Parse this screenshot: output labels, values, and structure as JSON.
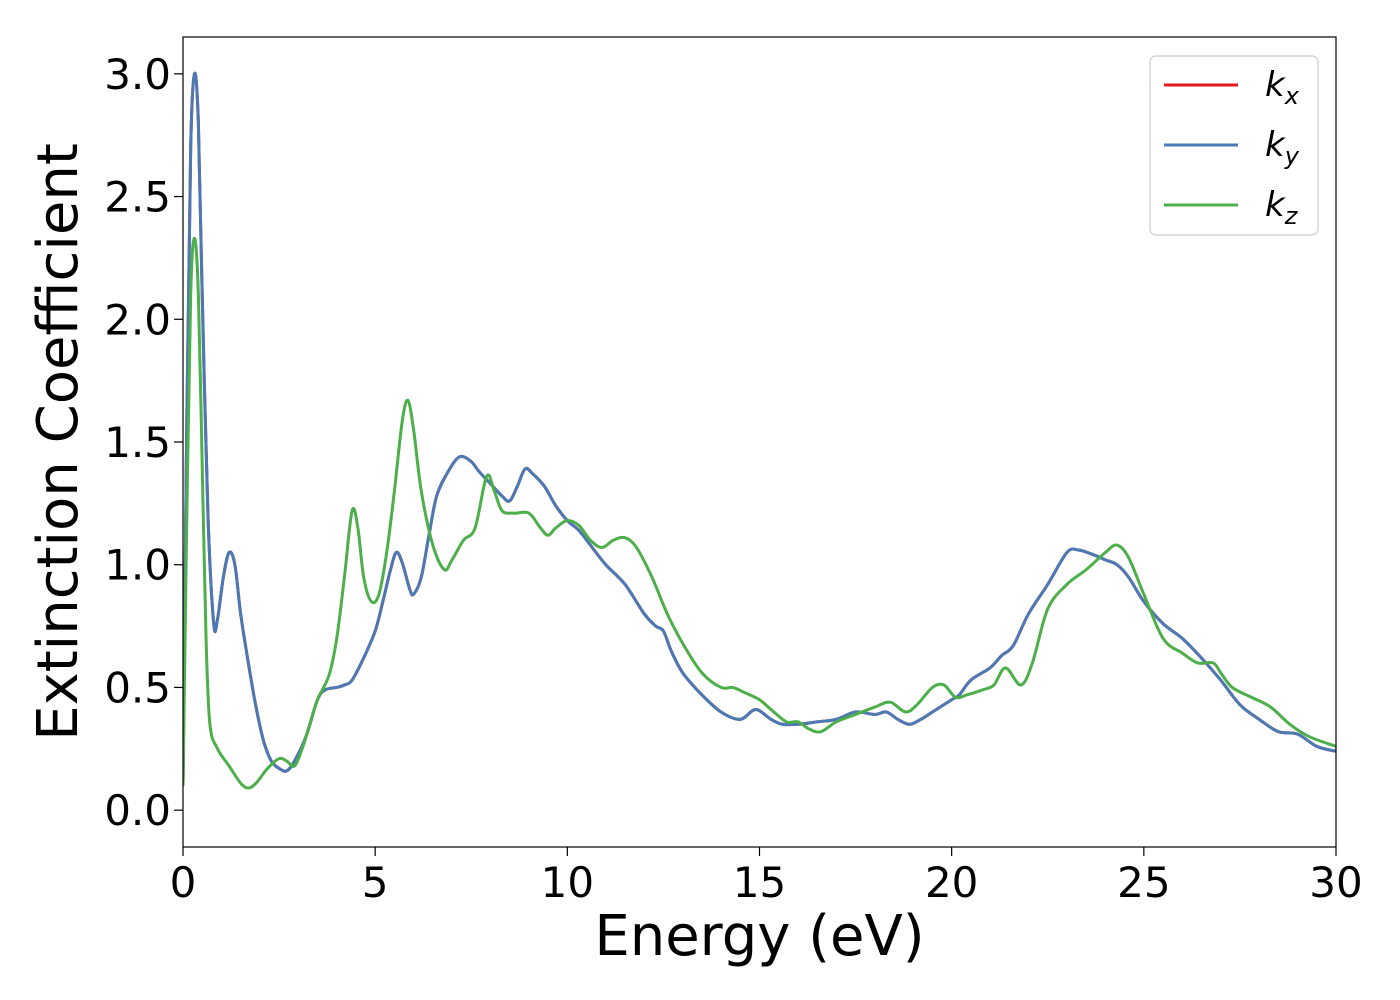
{
  "chart_data": {
    "type": "line",
    "title": "",
    "xlabel": "Energy (eV)",
    "ylabel": "Extinction Coefficient",
    "xlim": [
      0,
      30
    ],
    "ylim": [
      -0.15,
      3.15
    ],
    "xticks": [
      0,
      5,
      10,
      15,
      20,
      25,
      30
    ],
    "xtick_labels": [
      "0",
      "5",
      "10",
      "15",
      "20",
      "25",
      "30"
    ],
    "yticks": [
      0.0,
      0.5,
      1.0,
      1.5,
      2.0,
      2.5,
      3.0
    ],
    "ytick_labels": [
      "0.0",
      "0.5",
      "1.0",
      "1.5",
      "2.0",
      "2.5",
      "3.0"
    ],
    "grid": false,
    "legend_position": "top-right",
    "series": [
      {
        "name": "k",
        "name_sub": "x",
        "color": "#e41a1c",
        "points": [
          [
            0,
            0.1
          ],
          [
            0.1,
            1.6
          ],
          [
            0.2,
            2.7
          ],
          [
            0.3,
            3.0
          ],
          [
            0.4,
            2.8
          ],
          [
            0.5,
            2.1
          ],
          [
            0.65,
            1.2
          ],
          [
            0.8,
            0.76
          ],
          [
            0.9,
            0.78
          ],
          [
            1.05,
            0.95
          ],
          [
            1.2,
            1.05
          ],
          [
            1.35,
            1.0
          ],
          [
            1.5,
            0.8
          ],
          [
            1.7,
            0.6
          ],
          [
            1.9,
            0.42
          ],
          [
            2.1,
            0.28
          ],
          [
            2.3,
            0.2
          ],
          [
            2.5,
            0.17
          ],
          [
            2.7,
            0.16
          ],
          [
            2.9,
            0.2
          ],
          [
            3.2,
            0.3
          ],
          [
            3.5,
            0.45
          ],
          [
            3.7,
            0.49
          ],
          [
            4.0,
            0.5
          ],
          [
            4.2,
            0.51
          ],
          [
            4.4,
            0.53
          ],
          [
            4.7,
            0.62
          ],
          [
            5.0,
            0.73
          ],
          [
            5.2,
            0.85
          ],
          [
            5.4,
            0.98
          ],
          [
            5.55,
            1.05
          ],
          [
            5.7,
            1.01
          ],
          [
            5.9,
            0.9
          ],
          [
            6.0,
            0.88
          ],
          [
            6.2,
            0.95
          ],
          [
            6.4,
            1.12
          ],
          [
            6.6,
            1.28
          ],
          [
            6.9,
            1.38
          ],
          [
            7.2,
            1.44
          ],
          [
            7.5,
            1.42
          ],
          [
            7.7,
            1.38
          ],
          [
            8.0,
            1.33
          ],
          [
            8.3,
            1.28
          ],
          [
            8.5,
            1.26
          ],
          [
            8.7,
            1.32
          ],
          [
            8.9,
            1.39
          ],
          [
            9.1,
            1.37
          ],
          [
            9.4,
            1.32
          ],
          [
            9.7,
            1.24
          ],
          [
            10.0,
            1.18
          ],
          [
            10.3,
            1.14
          ],
          [
            10.6,
            1.08
          ],
          [
            11.0,
            1.0
          ],
          [
            11.5,
            0.92
          ],
          [
            12.0,
            0.8
          ],
          [
            12.3,
            0.75
          ],
          [
            12.5,
            0.73
          ],
          [
            12.7,
            0.65
          ],
          [
            13.0,
            0.56
          ],
          [
            13.5,
            0.47
          ],
          [
            14.0,
            0.4
          ],
          [
            14.5,
            0.37
          ],
          [
            14.9,
            0.41
          ],
          [
            15.3,
            0.37
          ],
          [
            15.6,
            0.35
          ],
          [
            16.0,
            0.35
          ],
          [
            16.5,
            0.36
          ],
          [
            17.0,
            0.37
          ],
          [
            17.5,
            0.4
          ],
          [
            18.0,
            0.39
          ],
          [
            18.3,
            0.4
          ],
          [
            18.6,
            0.37
          ],
          [
            18.9,
            0.35
          ],
          [
            19.2,
            0.37
          ],
          [
            19.5,
            0.4
          ],
          [
            20.0,
            0.45
          ],
          [
            20.2,
            0.47
          ],
          [
            20.5,
            0.53
          ],
          [
            21.0,
            0.58
          ],
          [
            21.3,
            0.63
          ],
          [
            21.6,
            0.67
          ],
          [
            22.0,
            0.8
          ],
          [
            22.5,
            0.92
          ],
          [
            23.0,
            1.05
          ],
          [
            23.3,
            1.06
          ],
          [
            23.7,
            1.04
          ],
          [
            24.0,
            1.02
          ],
          [
            24.3,
            1.0
          ],
          [
            24.6,
            0.95
          ],
          [
            25.0,
            0.85
          ],
          [
            25.5,
            0.76
          ],
          [
            26.0,
            0.7
          ],
          [
            26.5,
            0.62
          ],
          [
            27.0,
            0.53
          ],
          [
            27.5,
            0.43
          ],
          [
            28.0,
            0.37
          ],
          [
            28.5,
            0.32
          ],
          [
            29.0,
            0.31
          ],
          [
            29.5,
            0.26
          ],
          [
            30.0,
            0.24
          ]
        ]
      },
      {
        "name": "k",
        "name_sub": "y",
        "color": "#4a7ab5",
        "points": [
          [
            0,
            0.1
          ],
          [
            0.1,
            1.6
          ],
          [
            0.2,
            2.7
          ],
          [
            0.3,
            3.0
          ],
          [
            0.4,
            2.8
          ],
          [
            0.5,
            2.1
          ],
          [
            0.65,
            1.2
          ],
          [
            0.8,
            0.76
          ],
          [
            0.9,
            0.78
          ],
          [
            1.05,
            0.95
          ],
          [
            1.2,
            1.05
          ],
          [
            1.35,
            1.0
          ],
          [
            1.5,
            0.8
          ],
          [
            1.7,
            0.6
          ],
          [
            1.9,
            0.42
          ],
          [
            2.1,
            0.28
          ],
          [
            2.3,
            0.2
          ],
          [
            2.5,
            0.17
          ],
          [
            2.7,
            0.16
          ],
          [
            2.9,
            0.2
          ],
          [
            3.2,
            0.3
          ],
          [
            3.5,
            0.45
          ],
          [
            3.7,
            0.49
          ],
          [
            4.0,
            0.5
          ],
          [
            4.2,
            0.51
          ],
          [
            4.4,
            0.53
          ],
          [
            4.7,
            0.62
          ],
          [
            5.0,
            0.73
          ],
          [
            5.2,
            0.85
          ],
          [
            5.4,
            0.98
          ],
          [
            5.55,
            1.05
          ],
          [
            5.7,
            1.01
          ],
          [
            5.9,
            0.9
          ],
          [
            6.0,
            0.88
          ],
          [
            6.2,
            0.95
          ],
          [
            6.4,
            1.12
          ],
          [
            6.6,
            1.28
          ],
          [
            6.9,
            1.38
          ],
          [
            7.2,
            1.44
          ],
          [
            7.5,
            1.42
          ],
          [
            7.7,
            1.38
          ],
          [
            8.0,
            1.33
          ],
          [
            8.3,
            1.28
          ],
          [
            8.5,
            1.26
          ],
          [
            8.7,
            1.32
          ],
          [
            8.9,
            1.39
          ],
          [
            9.1,
            1.37
          ],
          [
            9.4,
            1.32
          ],
          [
            9.7,
            1.24
          ],
          [
            10.0,
            1.18
          ],
          [
            10.3,
            1.14
          ],
          [
            10.6,
            1.08
          ],
          [
            11.0,
            1.0
          ],
          [
            11.5,
            0.92
          ],
          [
            12.0,
            0.8
          ],
          [
            12.3,
            0.75
          ],
          [
            12.5,
            0.73
          ],
          [
            12.7,
            0.65
          ],
          [
            13.0,
            0.56
          ],
          [
            13.5,
            0.47
          ],
          [
            14.0,
            0.4
          ],
          [
            14.5,
            0.37
          ],
          [
            14.9,
            0.41
          ],
          [
            15.3,
            0.37
          ],
          [
            15.6,
            0.35
          ],
          [
            16.0,
            0.35
          ],
          [
            16.5,
            0.36
          ],
          [
            17.0,
            0.37
          ],
          [
            17.5,
            0.4
          ],
          [
            18.0,
            0.39
          ],
          [
            18.3,
            0.4
          ],
          [
            18.6,
            0.37
          ],
          [
            18.9,
            0.35
          ],
          [
            19.2,
            0.37
          ],
          [
            19.5,
            0.4
          ],
          [
            20.0,
            0.45
          ],
          [
            20.2,
            0.47
          ],
          [
            20.5,
            0.53
          ],
          [
            21.0,
            0.58
          ],
          [
            21.3,
            0.63
          ],
          [
            21.6,
            0.67
          ],
          [
            22.0,
            0.8
          ],
          [
            22.5,
            0.92
          ],
          [
            23.0,
            1.05
          ],
          [
            23.3,
            1.06
          ],
          [
            23.7,
            1.04
          ],
          [
            24.0,
            1.02
          ],
          [
            24.3,
            1.0
          ],
          [
            24.6,
            0.95
          ],
          [
            25.0,
            0.85
          ],
          [
            25.5,
            0.76
          ],
          [
            26.0,
            0.7
          ],
          [
            26.5,
            0.62
          ],
          [
            27.0,
            0.53
          ],
          [
            27.5,
            0.43
          ],
          [
            28.0,
            0.37
          ],
          [
            28.5,
            0.32
          ],
          [
            29.0,
            0.31
          ],
          [
            29.5,
            0.26
          ],
          [
            30.0,
            0.24
          ]
        ]
      },
      {
        "name": "k",
        "name_sub": "z",
        "color": "#4daf4a",
        "points": [
          [
            0,
            0.1
          ],
          [
            0.1,
            1.2
          ],
          [
            0.2,
            2.1
          ],
          [
            0.3,
            2.33
          ],
          [
            0.4,
            2.1
          ],
          [
            0.5,
            1.4
          ],
          [
            0.6,
            0.7
          ],
          [
            0.7,
            0.35
          ],
          [
            0.9,
            0.25
          ],
          [
            1.2,
            0.18
          ],
          [
            1.5,
            0.11
          ],
          [
            1.7,
            0.09
          ],
          [
            1.9,
            0.11
          ],
          [
            2.2,
            0.17
          ],
          [
            2.5,
            0.21
          ],
          [
            2.7,
            0.2
          ],
          [
            2.9,
            0.18
          ],
          [
            3.1,
            0.25
          ],
          [
            3.3,
            0.35
          ],
          [
            3.5,
            0.45
          ],
          [
            3.8,
            0.55
          ],
          [
            4.0,
            0.7
          ],
          [
            4.2,
            0.95
          ],
          [
            4.4,
            1.22
          ],
          [
            4.55,
            1.15
          ],
          [
            4.7,
            0.95
          ],
          [
            4.9,
            0.85
          ],
          [
            5.1,
            0.88
          ],
          [
            5.3,
            1.05
          ],
          [
            5.5,
            1.3
          ],
          [
            5.7,
            1.58
          ],
          [
            5.85,
            1.67
          ],
          [
            6.0,
            1.55
          ],
          [
            6.2,
            1.3
          ],
          [
            6.5,
            1.08
          ],
          [
            6.8,
            0.98
          ],
          [
            7.0,
            1.02
          ],
          [
            7.3,
            1.1
          ],
          [
            7.6,
            1.15
          ],
          [
            7.9,
            1.36
          ],
          [
            8.1,
            1.3
          ],
          [
            8.3,
            1.22
          ],
          [
            8.6,
            1.21
          ],
          [
            9.0,
            1.21
          ],
          [
            9.3,
            1.15
          ],
          [
            9.5,
            1.12
          ],
          [
            9.7,
            1.15
          ],
          [
            10.0,
            1.18
          ],
          [
            10.3,
            1.16
          ],
          [
            10.6,
            1.1
          ],
          [
            10.9,
            1.07
          ],
          [
            11.2,
            1.1
          ],
          [
            11.5,
            1.11
          ],
          [
            11.8,
            1.07
          ],
          [
            12.2,
            0.95
          ],
          [
            12.6,
            0.8
          ],
          [
            13.0,
            0.68
          ],
          [
            13.5,
            0.56
          ],
          [
            14.0,
            0.5
          ],
          [
            14.3,
            0.5
          ],
          [
            14.6,
            0.48
          ],
          [
            15.0,
            0.45
          ],
          [
            15.3,
            0.41
          ],
          [
            15.7,
            0.36
          ],
          [
            16.0,
            0.36
          ],
          [
            16.3,
            0.33
          ],
          [
            16.6,
            0.32
          ],
          [
            17.0,
            0.36
          ],
          [
            17.5,
            0.39
          ],
          [
            18.0,
            0.42
          ],
          [
            18.4,
            0.44
          ],
          [
            18.8,
            0.4
          ],
          [
            19.1,
            0.43
          ],
          [
            19.5,
            0.5
          ],
          [
            19.8,
            0.51
          ],
          [
            20.1,
            0.46
          ],
          [
            20.4,
            0.47
          ],
          [
            20.8,
            0.49
          ],
          [
            21.1,
            0.51
          ],
          [
            21.4,
            0.58
          ],
          [
            21.8,
            0.51
          ],
          [
            22.1,
            0.6
          ],
          [
            22.5,
            0.82
          ],
          [
            23.0,
            0.92
          ],
          [
            23.5,
            0.98
          ],
          [
            24.0,
            1.05
          ],
          [
            24.3,
            1.08
          ],
          [
            24.6,
            1.03
          ],
          [
            25.0,
            0.88
          ],
          [
            25.5,
            0.7
          ],
          [
            26.0,
            0.64
          ],
          [
            26.4,
            0.6
          ],
          [
            26.8,
            0.6
          ],
          [
            27.0,
            0.56
          ],
          [
            27.3,
            0.5
          ],
          [
            27.8,
            0.46
          ],
          [
            28.3,
            0.42
          ],
          [
            28.8,
            0.35
          ],
          [
            29.3,
            0.3
          ],
          [
            30.0,
            0.26
          ]
        ]
      }
    ]
  }
}
